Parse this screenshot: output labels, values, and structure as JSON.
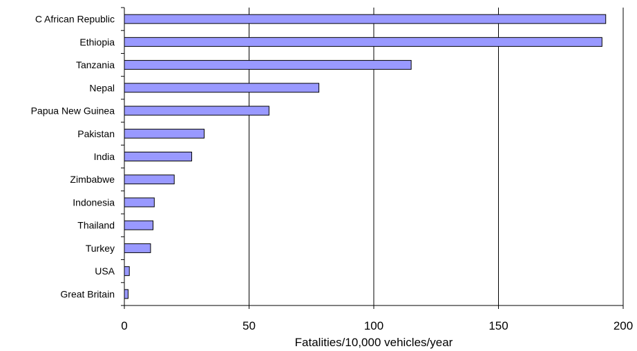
{
  "chart_data": {
    "type": "bar",
    "orientation": "horizontal",
    "title": "",
    "xlabel": "Fatalities/10,000 vehicles/year",
    "ylabel": "",
    "categories": [
      "C African Republic",
      "Ethiopia",
      "Tanzania",
      "Nepal",
      "Papua New Guinea",
      "Pakistan",
      "India",
      "Zimbabwe",
      "Indonesia",
      "Thailand",
      "Turkey",
      "USA",
      "Great Britain"
    ],
    "values": [
      193,
      191.5,
      115,
      78,
      58,
      32,
      27,
      20,
      12,
      11.5,
      10.5,
      2,
      1.5
    ],
    "xlim": [
      0,
      200
    ],
    "xticks": [
      "0",
      "50",
      "100",
      "150",
      "200"
    ],
    "grid": "vertical",
    "legend": "none",
    "bar_color": "#9999ff",
    "bar_edge_color": "#000000"
  }
}
